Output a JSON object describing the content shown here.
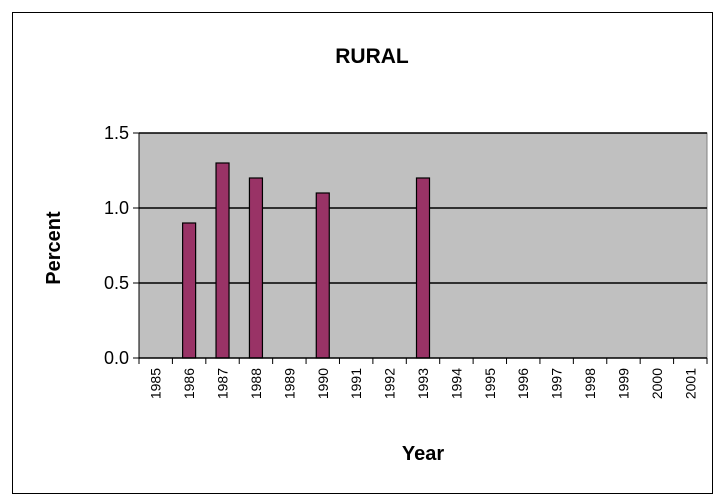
{
  "chart_data": {
    "type": "bar",
    "title": "RURAL",
    "xlabel": "Year",
    "ylabel": "Percent",
    "ylim": [
      0,
      1.5
    ],
    "yticks": [
      "0.0",
      "0.5",
      "1.0",
      "1.5"
    ],
    "categories": [
      "1985",
      "1986",
      "1987",
      "1988",
      "1989",
      "1990",
      "1991",
      "1992",
      "1993",
      "1994",
      "1995",
      "1996",
      "1997",
      "1998",
      "1999",
      "2000",
      "2001"
    ],
    "values": [
      null,
      0.9,
      1.3,
      1.2,
      null,
      1.1,
      null,
      null,
      1.2,
      null,
      null,
      null,
      null,
      null,
      null,
      null,
      null
    ],
    "grid": true,
    "legend": "none",
    "colors": {
      "bar": "#993366",
      "plot_bg": "#c0c0c0",
      "bar_stroke": "#000000"
    }
  }
}
